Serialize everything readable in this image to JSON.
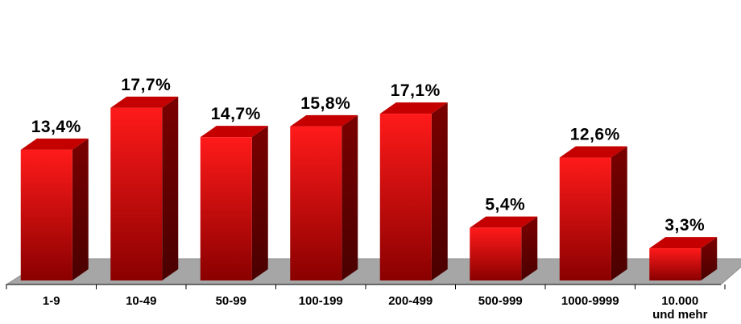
{
  "chart_data": {
    "type": "bar",
    "title": "",
    "xlabel": "",
    "ylabel": "",
    "categories": [
      "1-9",
      "10-49",
      "50-99",
      "100-199",
      "200-499",
      "500-999",
      "1000-9999",
      "10.000 und mehr"
    ],
    "category_lines": [
      [
        "1-9"
      ],
      [
        "10-49"
      ],
      [
        "50-99"
      ],
      [
        "100-199"
      ],
      [
        "200-499"
      ],
      [
        "500-999"
      ],
      [
        "1000-9999"
      ],
      [
        "10.000",
        "und mehr"
      ]
    ],
    "values": [
      13.4,
      17.7,
      14.7,
      15.8,
      17.1,
      5.4,
      12.6,
      3.3
    ],
    "data_labels": [
      "13,4%",
      "17,7%",
      "14,7%",
      "15,8%",
      "17,1%",
      "5,4%",
      "12,6%",
      "3,3%"
    ],
    "ylim": [
      0,
      20
    ],
    "grid": false,
    "legend": "none",
    "style": "3d-bar",
    "colors": {
      "bar_front_light": "#ff1a1a",
      "bar_front_dark": "#8a0000",
      "bar_side": "#6e0000",
      "bar_top": "#c40000",
      "floor": "#a6a6a6",
      "axis": "#000000"
    }
  }
}
